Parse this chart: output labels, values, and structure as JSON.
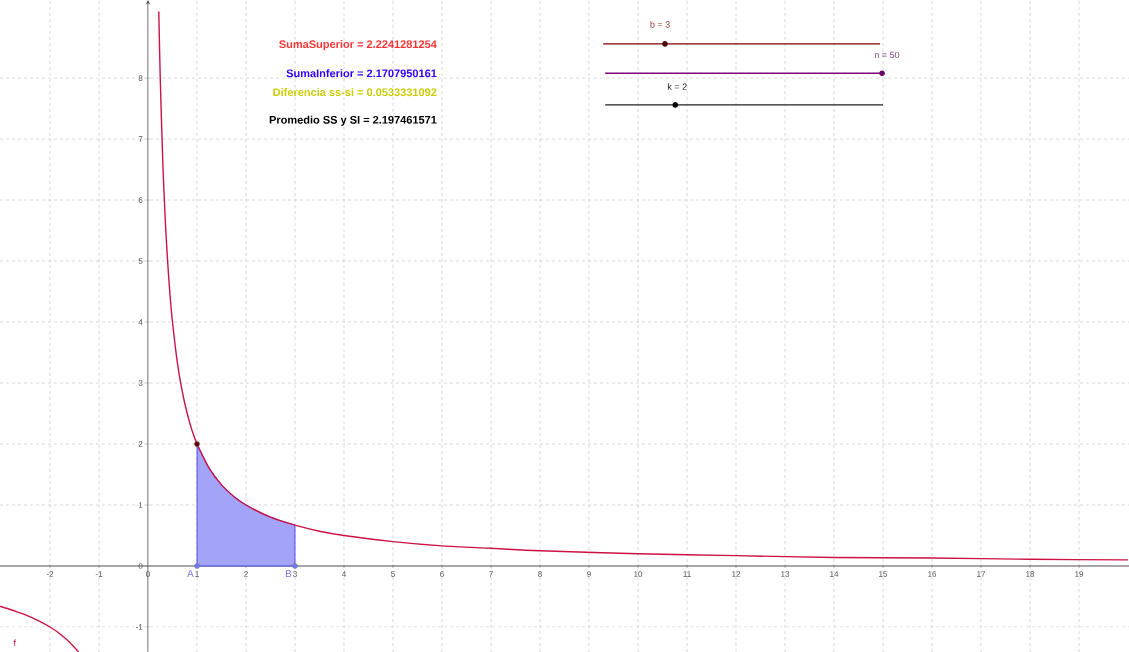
{
  "chart_data": {
    "type": "line",
    "xlim": [
      -3.02,
      20.02
    ],
    "ylim": [
      -1.41,
      9.28
    ],
    "xticks": [
      -2,
      -1,
      0,
      1,
      2,
      3,
      4,
      5,
      6,
      7,
      8,
      9,
      10,
      11,
      12,
      13,
      14,
      15,
      16,
      17,
      18,
      19
    ],
    "yticks": [
      -1,
      0,
      1,
      2,
      3,
      4,
      5,
      6,
      7,
      8
    ],
    "grid": true,
    "series": [
      {
        "type": "area",
        "color": "#3333ee",
        "x": [
          1,
          1.25,
          1.5,
          1.75,
          2,
          2.25,
          2.5,
          2.75,
          3
        ],
        "values": [
          2,
          1.6,
          1.33,
          1.14,
          1,
          0.89,
          0.8,
          0.73,
          0.67
        ]
      },
      {
        "color": "#cc1144",
        "x": [
          0.22,
          0.25,
          0.3,
          0.35,
          0.4,
          0.45,
          0.5,
          0.6,
          0.7,
          0.8,
          0.9,
          1,
          1.25,
          1.5,
          1.75,
          2,
          2.5,
          3,
          3.5,
          4,
          5,
          6,
          7,
          8,
          10,
          12,
          14,
          16,
          18,
          20
        ],
        "values": [
          9.09,
          8,
          6.67,
          5.71,
          5,
          4.44,
          4,
          3.33,
          2.86,
          2.5,
          2.22,
          2,
          1.6,
          1.33,
          1.14,
          1,
          0.8,
          0.67,
          0.57,
          0.5,
          0.4,
          0.33,
          0.29,
          0.25,
          0.2,
          0.17,
          0.14,
          0.13,
          0.11,
          0.1
        ]
      },
      {
        "color": "#cc1144",
        "x": [
          -3.02,
          -2.75,
          -2.5,
          -2.25,
          -2,
          -1.8,
          -1.6,
          -1.45,
          -1.42
        ],
        "values": [
          -0.66,
          -0.73,
          -0.8,
          -0.89,
          -1,
          -1.11,
          -1.25,
          -1.38,
          -1.41
        ]
      },
      {
        "type": "scatter",
        "color": "#7777ee",
        "marker": "circle",
        "x": [
          1,
          3
        ],
        "values": [
          0,
          0
        ]
      },
      {
        "type": "scatter",
        "color": "#660000",
        "marker": "circle",
        "x": [
          1
        ],
        "values": [
          2
        ]
      }
    ],
    "annotations": [
      "SumaSuperior = 2.2241281254",
      "SumaInferior = 2.1707950161",
      "Diferencia ss-si = 0.0533331092",
      "Promedio SS y SI = 2.197461571",
      "b = 3",
      "n = 50",
      "k = 2",
      "f",
      {
        "text": "A",
        "x": 1,
        "y": 0
      },
      {
        "text": "B",
        "x": 3,
        "y": 0
      }
    ]
  }
}
